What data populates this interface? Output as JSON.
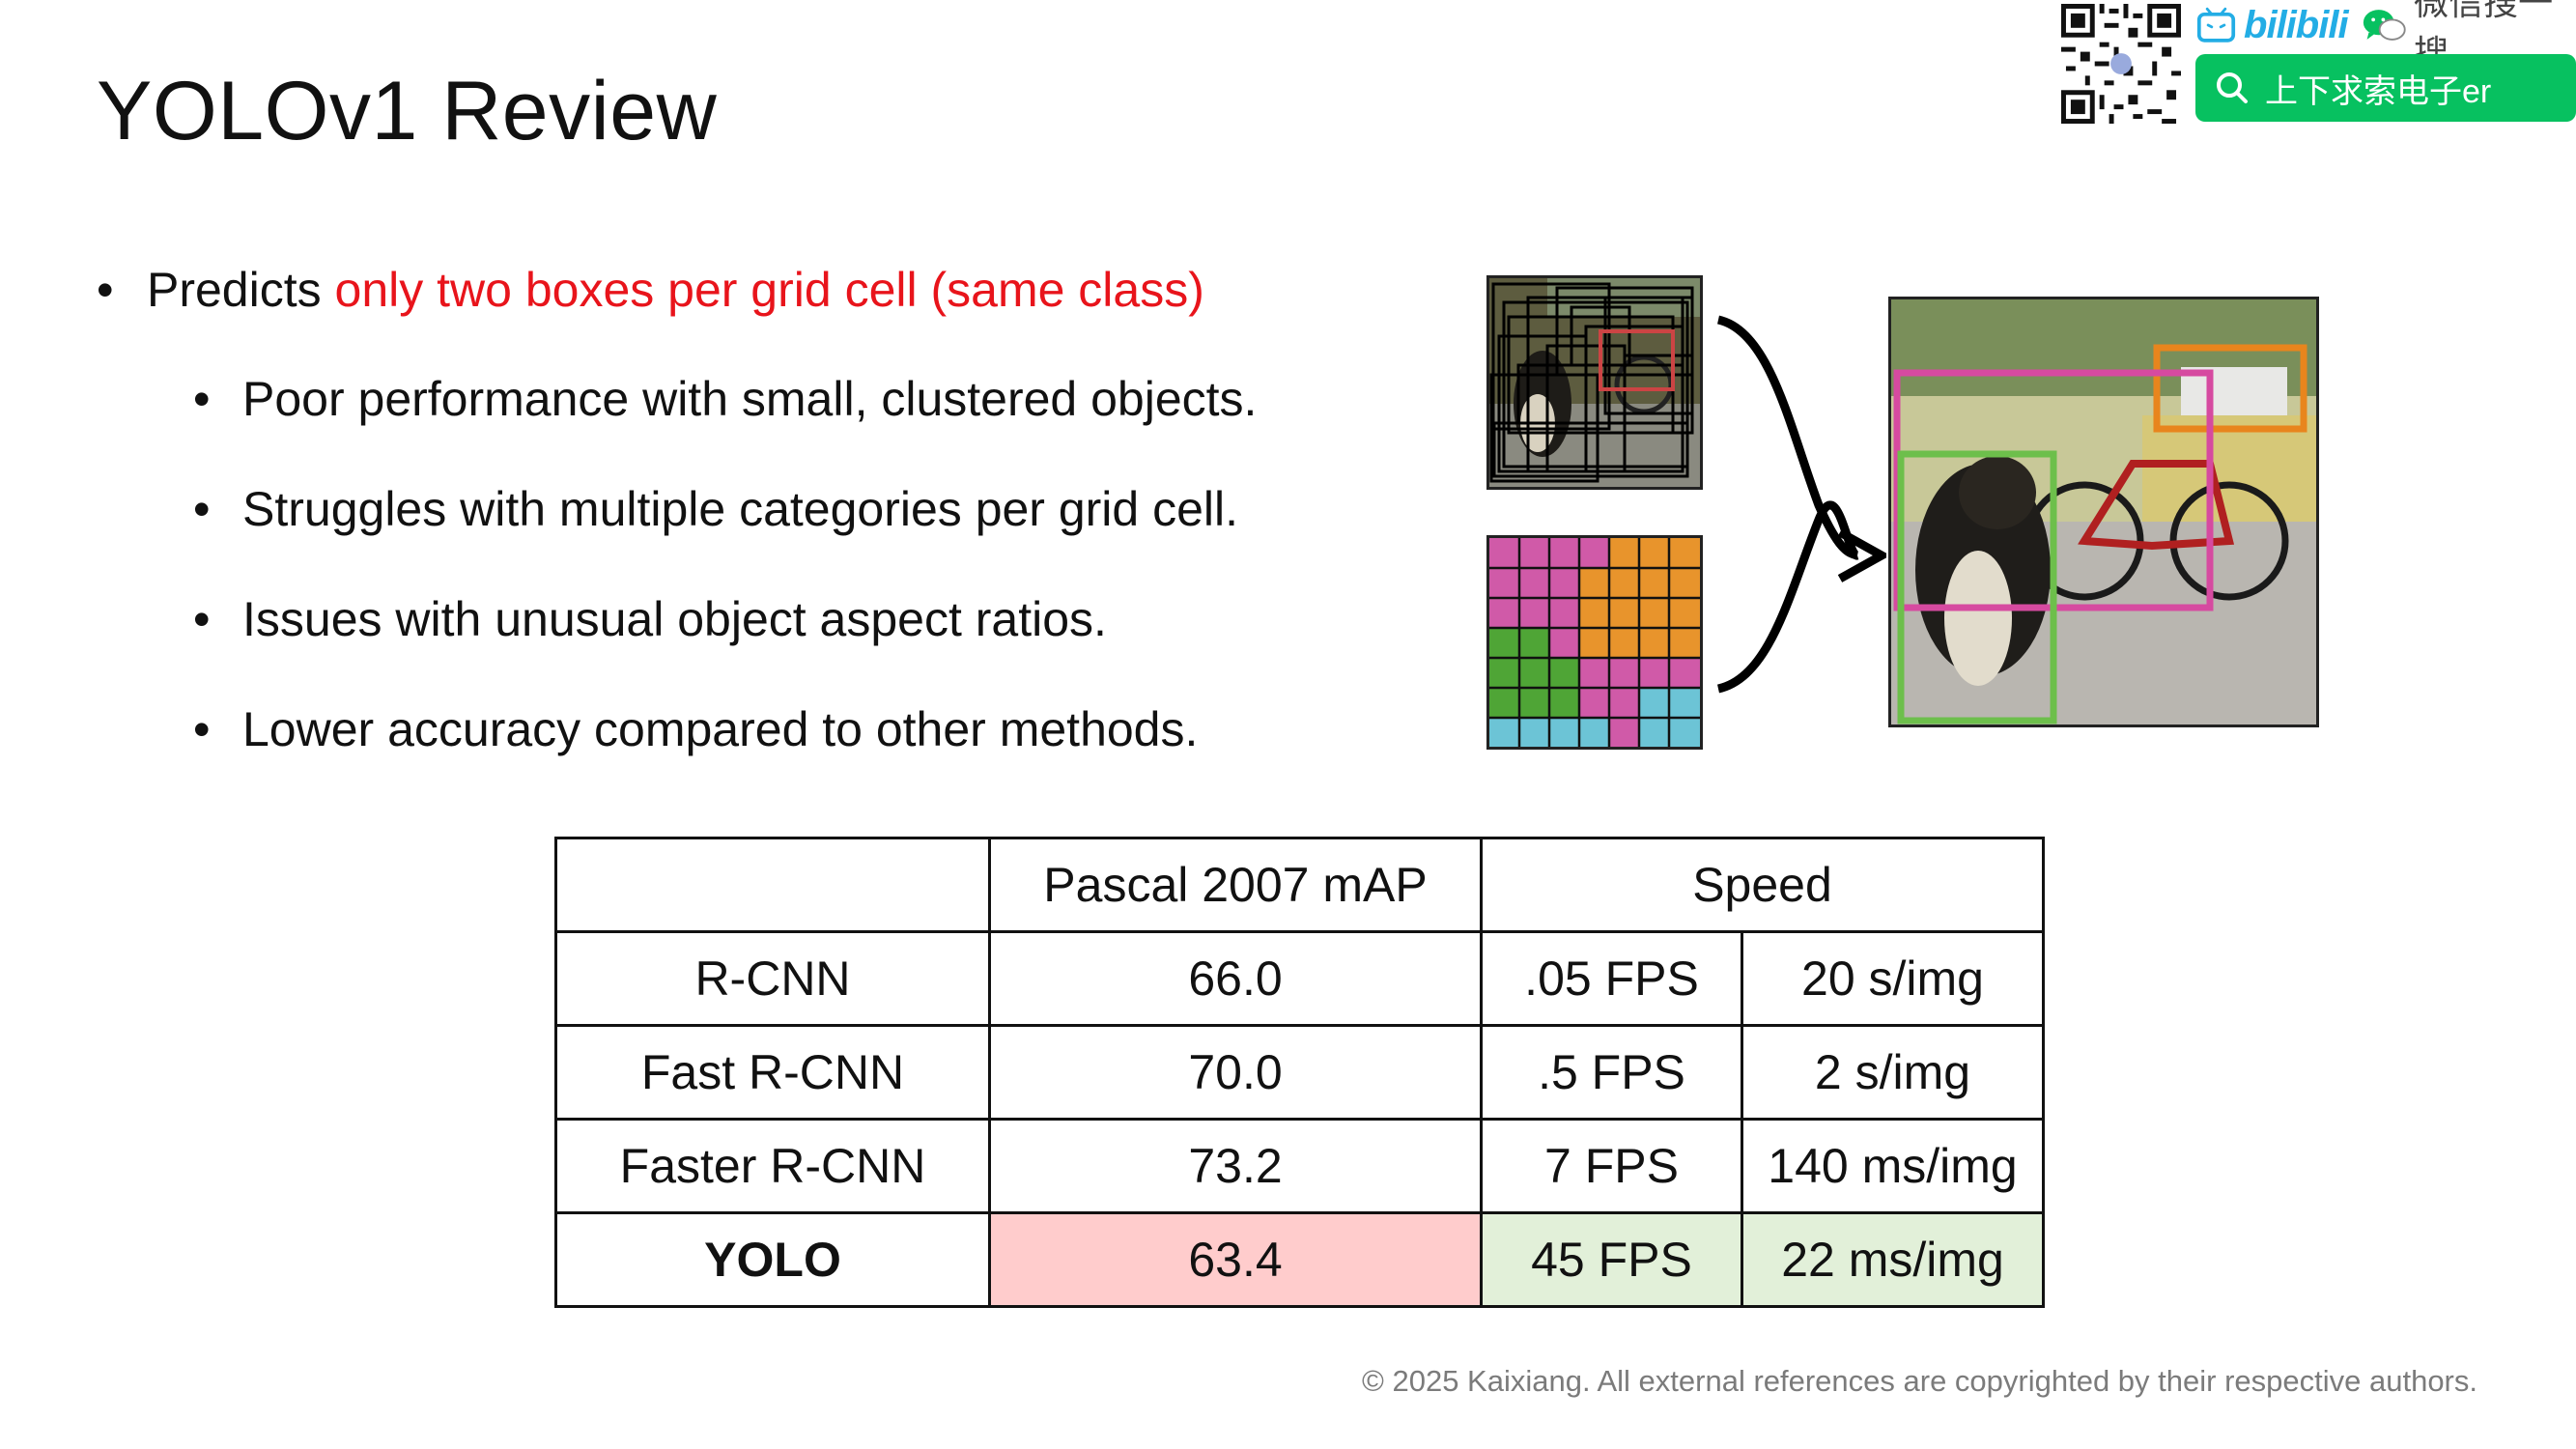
{
  "slide": {
    "title": "YOLOv1 Review",
    "bullet_main_prefix": "Predicts ",
    "bullet_main_highlight": "only two boxes per grid cell (same class)",
    "sub_bullets": [
      "Poor performance with small, clustered objects.",
      "Struggles with multiple categories per grid cell.",
      "Issues with unusual object aspect ratios.",
      "Lower accuracy compared to other methods."
    ],
    "highlight_color": "#e8141b"
  },
  "table": {
    "header": [
      "",
      "Pascal 2007 mAP",
      "Speed"
    ],
    "rows": [
      {
        "name": "R-CNN",
        "map": "66.0",
        "fps": ".05 FPS",
        "latency": "20 s/img"
      },
      {
        "name": "Fast R-CNN",
        "map": "70.0",
        "fps": ".5 FPS",
        "latency": "2 s/img"
      },
      {
        "name": "Faster R-CNN",
        "map": "73.2",
        "fps": "7 FPS",
        "latency": "140 ms/img"
      },
      {
        "name": "YOLO",
        "map": "63.4",
        "fps": "45 FPS",
        "latency": "22 ms/img"
      }
    ],
    "colors": {
      "map_highlight": "#ffcccc",
      "speed_highlight": "#e2f0d9"
    }
  },
  "footer": "© 2025 Kaixiang. All external references are copyrighted by their respective authors.",
  "branding": {
    "bilibili_text": "bilibili",
    "wechat_text": "微信搜一搜",
    "search_text": "上下求索电子er",
    "search_color": "#07c160",
    "bilibili_color": "#23ade5"
  },
  "icons": [
    "qr-code-icon",
    "bilibili-tv-icon",
    "wechat-icon",
    "search-icon",
    "arrow-icon"
  ]
}
